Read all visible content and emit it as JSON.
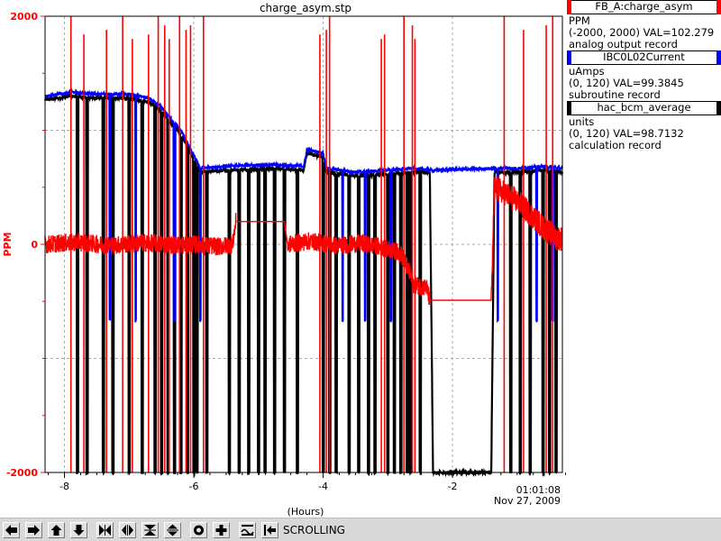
{
  "chart_data": {
    "type": "line",
    "title": "charge_asym.stp",
    "xlabel": "(Hours)",
    "ylabel": "PPM",
    "xlim": [
      -8.3,
      -0.3
    ],
    "ylim": [
      -2000,
      2000
    ],
    "xticks": [
      -8,
      -6,
      -4,
      -2
    ],
    "xtick_labels": [
      "-8",
      "-6",
      "-4",
      "-2"
    ],
    "yticks": [
      -2000,
      0,
      2000
    ],
    "ytick_labels": [
      "-2000",
      "0",
      "2000"
    ],
    "time_label": "01:01:08",
    "date_label": "Nov 27, 2009",
    "grid": true,
    "series": [
      {
        "name": "FB_A:charge_asym",
        "color": "#ff0000",
        "units": "PPM",
        "range_text": "(-2000, 2000) VAL=102.279",
        "record_type": "analog output record",
        "y_min": -2000,
        "y_max": 2000,
        "points": [
          [
            -8.3,
            0
          ],
          [
            -7.8,
            20
          ],
          [
            -7.3,
            -10
          ],
          [
            -6.8,
            15
          ],
          [
            -6.3,
            -5
          ],
          [
            -6.0,
            0
          ],
          [
            -5.6,
            -20
          ],
          [
            -5.4,
            0
          ],
          [
            -5.35,
            200
          ],
          [
            -4.6,
            200
          ],
          [
            -4.55,
            0
          ],
          [
            -4.2,
            30
          ],
          [
            -3.8,
            -10
          ],
          [
            -3.4,
            10
          ],
          [
            -3.0,
            -40
          ],
          [
            -2.8,
            -80
          ],
          [
            -2.7,
            -200
          ],
          [
            -2.6,
            -350
          ],
          [
            -2.4,
            -380
          ],
          [
            -2.35,
            -490
          ],
          [
            -1.4,
            -490
          ],
          [
            -1.35,
            500
          ],
          [
            -1.2,
            450
          ],
          [
            -1.0,
            380
          ],
          [
            -0.8,
            270
          ],
          [
            -0.6,
            150
          ],
          [
            -0.4,
            60
          ],
          [
            -0.3,
            50
          ]
        ]
      },
      {
        "name": "IBC0L02Current",
        "color": "#0000ff",
        "units": "uAmps",
        "range_text": "(0, 120) VAL=99.3845",
        "record_type": "subroutine record",
        "y_min": 0,
        "y_max": 120,
        "points": [
          [
            -8.3,
            99
          ],
          [
            -7.9,
            100
          ],
          [
            -7.5,
            99.5
          ],
          [
            -7.0,
            99.5
          ],
          [
            -6.7,
            98.5
          ],
          [
            -6.5,
            96
          ],
          [
            -6.2,
            90
          ],
          [
            -6.05,
            85
          ],
          [
            -5.9,
            80
          ],
          [
            -5.5,
            80.5
          ],
          [
            -4.8,
            81
          ],
          [
            -4.3,
            80.5
          ],
          [
            -4.25,
            85
          ],
          [
            -4.0,
            84
          ],
          [
            -3.95,
            80
          ],
          [
            -3.5,
            79
          ],
          [
            -3.0,
            79.5
          ],
          [
            -2.6,
            80
          ],
          [
            -2.3,
            79.5
          ],
          [
            -1.3,
            80
          ],
          [
            -1.0,
            80
          ],
          [
            -0.6,
            80.5
          ],
          [
            -0.3,
            80
          ]
        ]
      },
      {
        "name": "hac_bcm_average",
        "color": "#000000",
        "units": "units",
        "range_text": "(0, 120) VAL=98.7132",
        "record_type": "calculation record",
        "y_min": 0,
        "y_max": 120,
        "points": [
          [
            -8.3,
            98
          ],
          [
            -7.9,
            99
          ],
          [
            -7.5,
            98.5
          ],
          [
            -7.0,
            98.5
          ],
          [
            -6.7,
            97.5
          ],
          [
            -6.5,
            95
          ],
          [
            -6.2,
            89
          ],
          [
            -6.05,
            84
          ],
          [
            -5.9,
            79
          ],
          [
            -5.5,
            79.5
          ],
          [
            -4.8,
            80
          ],
          [
            -4.3,
            79.5
          ],
          [
            -4.25,
            84
          ],
          [
            -4.0,
            83
          ],
          [
            -3.95,
            79
          ],
          [
            -3.5,
            78
          ],
          [
            -3.0,
            78.5
          ],
          [
            -2.6,
            79
          ],
          [
            -2.35,
            79
          ],
          [
            -2.3,
            0
          ],
          [
            -1.4,
            0
          ],
          [
            -1.35,
            79
          ],
          [
            -1.0,
            79
          ],
          [
            -0.6,
            79.5
          ],
          [
            -0.3,
            79
          ]
        ]
      }
    ],
    "dropouts": [
      -7.8,
      -7.65,
      -7.4,
      -7.25,
      -7.0,
      -6.8,
      -6.6,
      -6.5,
      -6.4,
      -6.3,
      -6.2,
      -6.1,
      -6.0,
      -5.95,
      -5.8,
      -5.45,
      -5.3,
      -5.15,
      -5.0,
      -4.9,
      -4.75,
      -4.6,
      -4.4,
      -4.0,
      -3.9,
      -3.8,
      -3.6,
      -3.45,
      -3.3,
      -3.2,
      -3.0,
      -2.9,
      -2.8,
      -2.7,
      -2.65,
      -2.5,
      -1.1,
      -0.95,
      -0.8,
      -0.6,
      -0.5,
      -0.4
    ],
    "red_spikes": [
      -7.9,
      -7.7,
      -7.35,
      -7.1,
      -6.95,
      -6.7,
      -6.55,
      -6.45,
      -6.38,
      -6.22,
      -6.12,
      -6.05,
      -5.85,
      -4.05,
      -3.95,
      -3.9,
      -3.1,
      -3.05,
      -2.75,
      -2.62,
      -2.58,
      -1.2,
      -0.9,
      -0.55,
      -0.45
    ],
    "blue_blips": [
      -7.3,
      -6.9,
      -6.3,
      -5.9,
      -3.7,
      -3.35,
      -2.95,
      -1.3,
      -0.7,
      -0.45
    ]
  },
  "toolbar": {
    "status": "SCROLLING",
    "buttons": [
      "left-arrow-icon",
      "right-arrow-icon",
      "up-arrow-icon",
      "down-arrow-icon",
      "zoom-in-x-icon",
      "zoom-out-x-icon",
      "zoom-in-y-icon",
      "zoom-out-y-icon",
      "center-icon",
      "crosshair-icon",
      "toggle-grid-icon",
      "scroll-icon"
    ]
  }
}
